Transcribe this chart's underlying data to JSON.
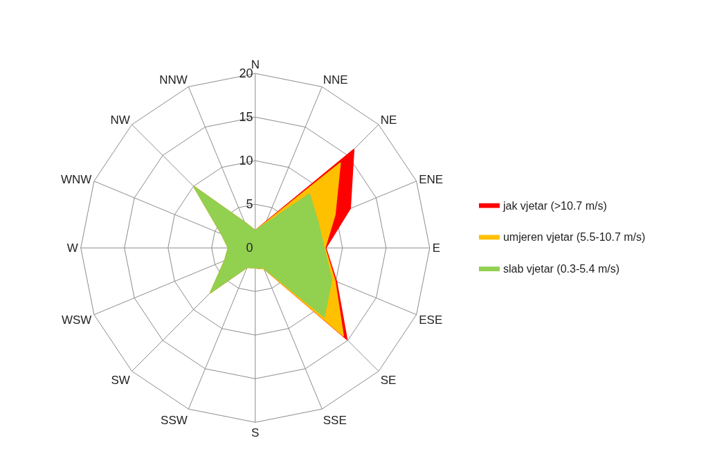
{
  "chart_data": {
    "type": "radar",
    "categories": [
      "N",
      "NNE",
      "NE",
      "ENE",
      "E",
      "ESE",
      "SE",
      "SSE",
      "S",
      "SSW",
      "SW",
      "WSW",
      "W",
      "WNW",
      "NW",
      "NNW"
    ],
    "series": [
      {
        "name": "slab vjetar (0.3-5.4 m/s)",
        "color": "#92d050",
        "values": [
          2.0,
          3.0,
          8.8,
          7.8,
          7.9,
          9.5,
          11.2,
          2.5,
          2.3,
          2.4,
          7.3,
          3.8,
          3.1,
          4.2,
          10.0,
          3.2
        ]
      },
      {
        "name": "umjeren vjetar (5.5-10.7 m/s)",
        "color": "#ffc000",
        "values": [
          2.0,
          3.2,
          13.8,
          9.9,
          8.0,
          9.9,
          14.3,
          2.6,
          2.3,
          2.4,
          7.3,
          3.8,
          3.1,
          4.2,
          10.0,
          3.2
        ]
      },
      {
        "name": "jak vjetar (>10.7 m/s)",
        "color": "#ff0000",
        "values": [
          2.0,
          3.3,
          16.0,
          11.8,
          8.1,
          10.1,
          14.9,
          2.6,
          2.3,
          2.4,
          7.3,
          3.8,
          3.1,
          4.2,
          10.0,
          3.2
        ]
      }
    ],
    "ylim": [
      0,
      20
    ],
    "yticks": [
      0,
      5,
      10,
      15,
      20
    ],
    "grid": true,
    "legend": "right"
  }
}
